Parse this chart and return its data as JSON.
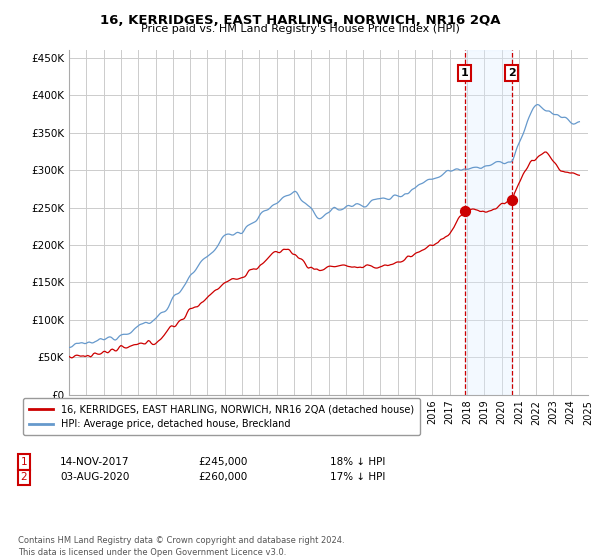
{
  "title": "16, KERRIDGES, EAST HARLING, NORWICH, NR16 2QA",
  "subtitle": "Price paid vs. HM Land Registry's House Price Index (HPI)",
  "ylabel_ticks": [
    "£0",
    "£50K",
    "£100K",
    "£150K",
    "£200K",
    "£250K",
    "£300K",
    "£350K",
    "£400K",
    "£450K"
  ],
  "ytick_vals": [
    0,
    50000,
    100000,
    150000,
    200000,
    250000,
    300000,
    350000,
    400000,
    450000
  ],
  "ylim": [
    0,
    460000
  ],
  "legend_label_red": "16, KERRIDGES, EAST HARLING, NORWICH, NR16 2QA (detached house)",
  "legend_label_blue": "HPI: Average price, detached house, Breckland",
  "annotation1_date": "14-NOV-2017",
  "annotation1_price": "£245,000",
  "annotation1_hpi": "18% ↓ HPI",
  "annotation2_date": "03-AUG-2020",
  "annotation2_price": "£260,000",
  "annotation2_hpi": "17% ↓ HPI",
  "footer": "Contains HM Land Registry data © Crown copyright and database right 2024.\nThis data is licensed under the Open Government Licence v3.0.",
  "line_color_red": "#cc0000",
  "line_color_blue": "#6699cc",
  "shade_color": "#ddeeff",
  "annotation_box_color": "#cc0000",
  "grid_color": "#cccccc",
  "bg_color": "#ffffff",
  "sale1_x": 2017.87,
  "sale1_y": 245000,
  "sale2_x": 2020.58,
  "sale2_y": 260000,
  "xmin": 1995,
  "xmax": 2025
}
